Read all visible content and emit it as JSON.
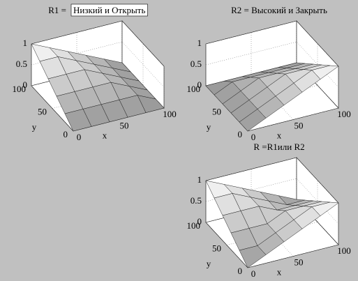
{
  "chart_data": [
    {
      "type": "surface",
      "title": "R1 =",
      "title_box": "Низкий  и Открыть",
      "xlabel": "x",
      "ylabel": "y",
      "x": [
        0,
        20,
        40,
        60,
        80,
        100
      ],
      "y": [
        0,
        20,
        40,
        60,
        80,
        100
      ],
      "z": [
        [
          0,
          0,
          0,
          0,
          0,
          0
        ],
        [
          0.2,
          0.2,
          0.2,
          0.2,
          0.2,
          0
        ],
        [
          0.4,
          0.4,
          0.4,
          0.4,
          0.2,
          0
        ],
        [
          0.6,
          0.6,
          0.6,
          0.4,
          0.2,
          0
        ],
        [
          0.8,
          0.8,
          0.6,
          0.4,
          0.2,
          0
        ],
        [
          1,
          0.8,
          0.6,
          0.4,
          0.2,
          0
        ]
      ],
      "xlim": [
        0,
        100
      ],
      "ylim": [
        0,
        100
      ],
      "zlim": [
        0,
        1
      ],
      "xticks": [
        0,
        50,
        100
      ],
      "yticks": [
        0,
        50,
        100
      ],
      "zticks": [
        0,
        0.5,
        1
      ],
      "grid": true
    },
    {
      "type": "surface",
      "title": "R2 = Высокий и Закрыть",
      "xlabel": "x",
      "ylabel": "y",
      "x": [
        0,
        20,
        40,
        60,
        80,
        100
      ],
      "y": [
        0,
        20,
        40,
        60,
        80,
        100
      ],
      "z": [
        [
          0,
          0.2,
          0.4,
          0.6,
          0.8,
          1
        ],
        [
          0,
          0.2,
          0.4,
          0.6,
          0.8,
          0.8
        ],
        [
          0,
          0.2,
          0.4,
          0.6,
          0.6,
          0.6
        ],
        [
          0,
          0.2,
          0.4,
          0.4,
          0.4,
          0.4
        ],
        [
          0,
          0.2,
          0.2,
          0.2,
          0.2,
          0.2
        ],
        [
          0,
          0,
          0,
          0,
          0,
          0
        ]
      ],
      "xlim": [
        0,
        100
      ],
      "ylim": [
        0,
        100
      ],
      "zlim": [
        0,
        1
      ],
      "xticks": [
        0,
        50,
        100
      ],
      "yticks": [
        0,
        50,
        100
      ],
      "zticks": [
        0,
        0.5,
        1
      ],
      "grid": true
    },
    {
      "type": "surface",
      "title": "R =R1или  R2",
      "xlabel": "x",
      "ylabel": "y",
      "x": [
        0,
        20,
        40,
        60,
        80,
        100
      ],
      "y": [
        0,
        20,
        40,
        60,
        80,
        100
      ],
      "z": [
        [
          0,
          0.2,
          0.4,
          0.6,
          0.8,
          1
        ],
        [
          0.2,
          0.2,
          0.4,
          0.6,
          0.8,
          0.8
        ],
        [
          0.4,
          0.4,
          0.4,
          0.6,
          0.6,
          0.6
        ],
        [
          0.6,
          0.6,
          0.6,
          0.4,
          0.4,
          0.4
        ],
        [
          0.8,
          0.8,
          0.6,
          0.4,
          0.2,
          0.2
        ],
        [
          1,
          0.8,
          0.6,
          0.4,
          0.2,
          0
        ]
      ],
      "xlim": [
        0,
        100
      ],
      "ylim": [
        0,
        100
      ],
      "zlim": [
        0,
        1
      ],
      "xticks": [
        0,
        50,
        100
      ],
      "yticks": [
        0,
        50,
        100
      ],
      "zticks": [
        0,
        0.5,
        1
      ],
      "grid": true
    }
  ]
}
